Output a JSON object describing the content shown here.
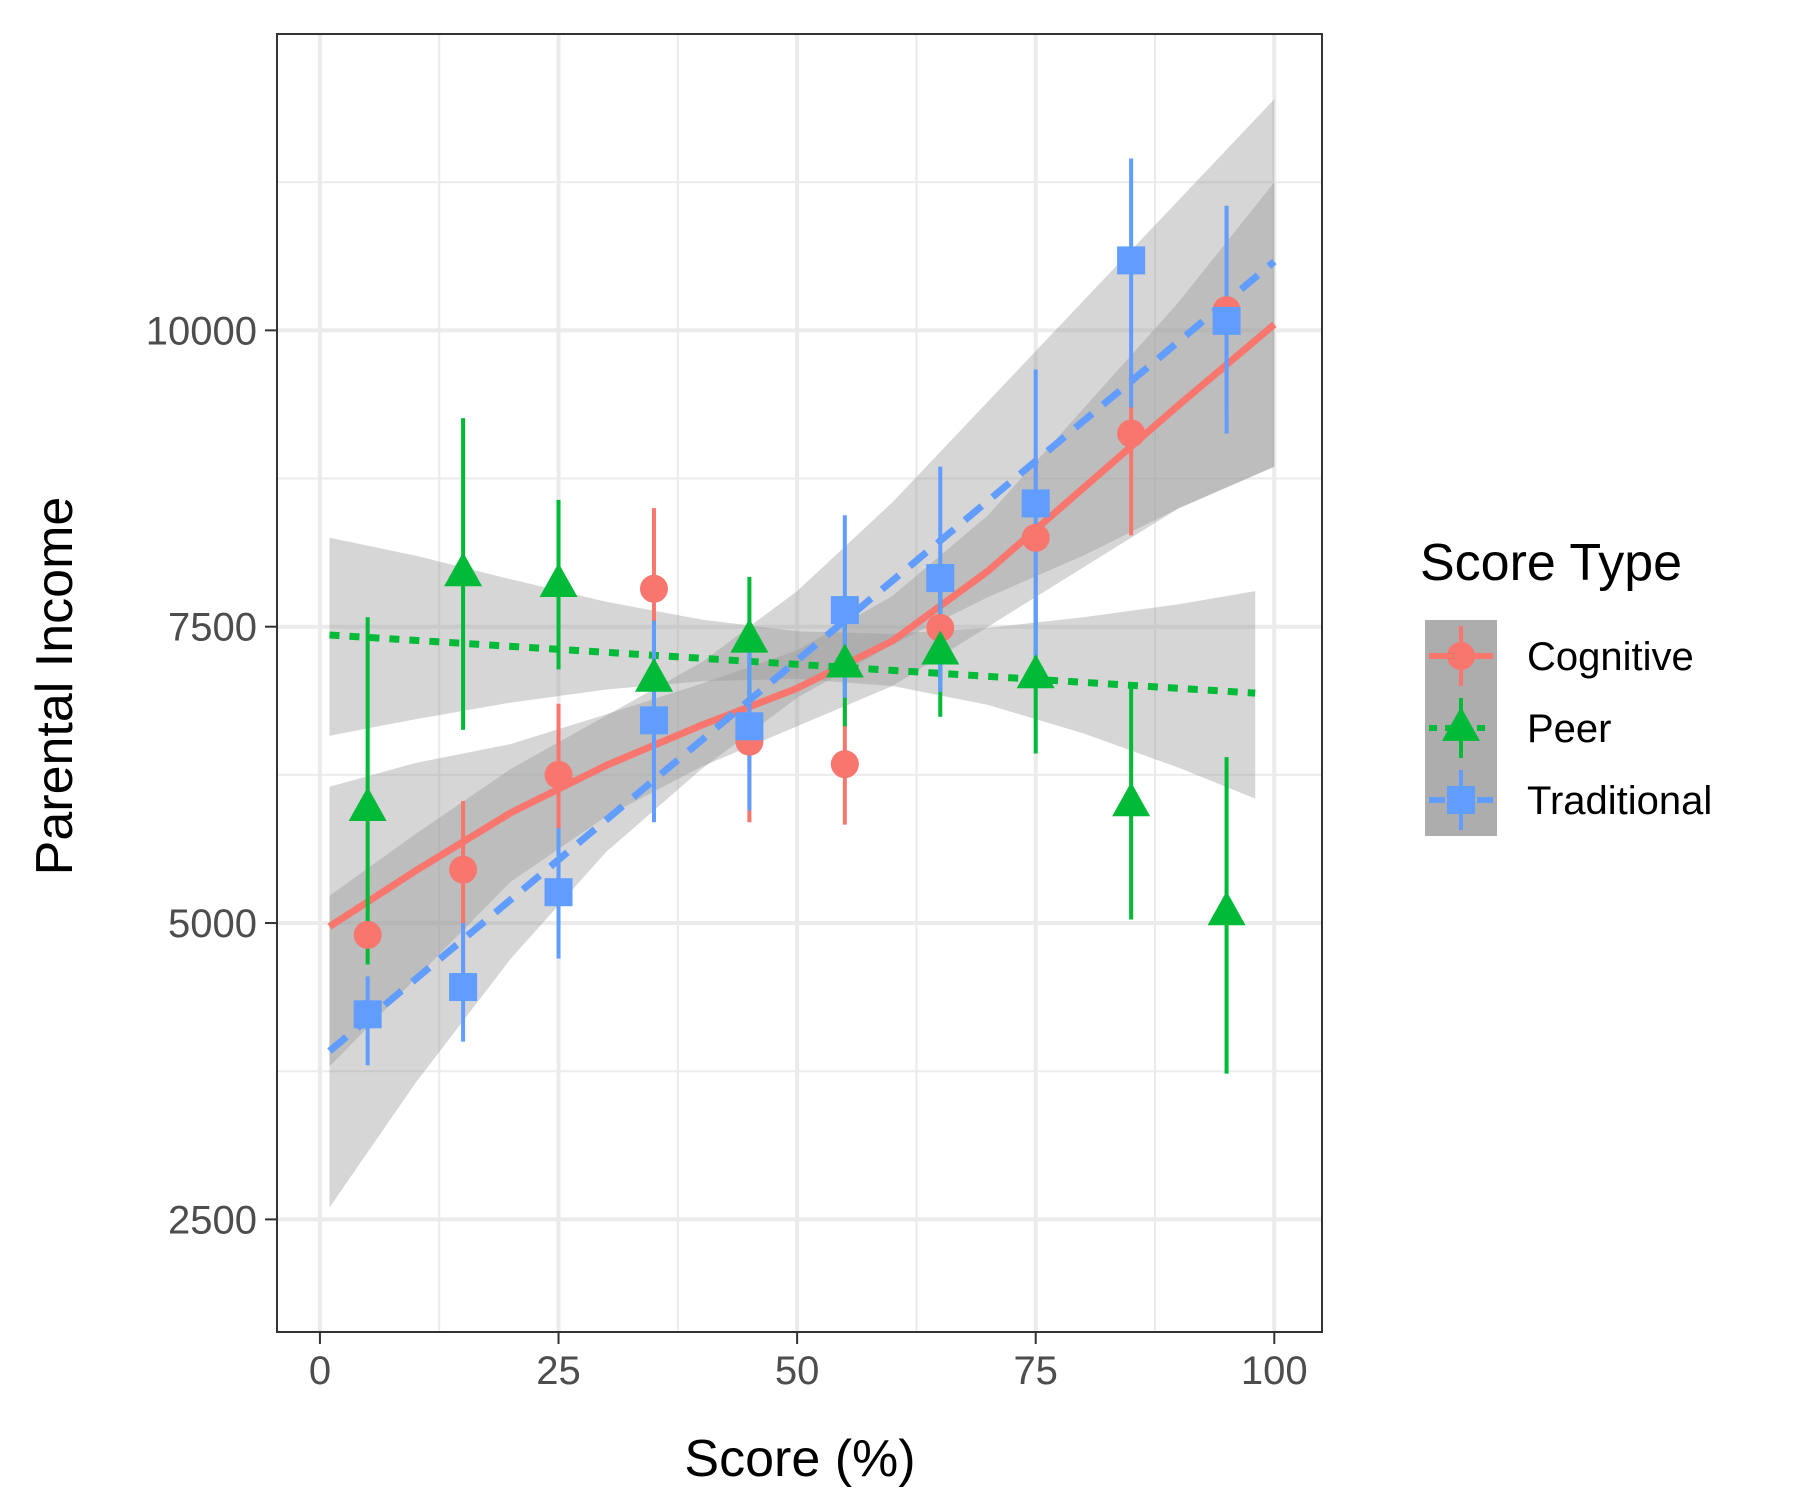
{
  "chart_data": {
    "type": "scatter",
    "title": "",
    "xlabel": "Score (%)",
    "ylabel": "Parental Income",
    "xlim": [
      -4.5,
      105
    ],
    "ylim": [
      1550,
      12500
    ],
    "x_ticks": [
      0,
      25,
      50,
      75,
      100
    ],
    "x_tick_labels": [
      "0",
      "25",
      "50",
      "75",
      "100"
    ],
    "y_ticks": [
      2500,
      5000,
      7500,
      10000
    ],
    "y_tick_labels": [
      "2500",
      "5000",
      "7500",
      "10000"
    ],
    "x_minor": [
      12.5,
      37.5,
      62.5,
      87.5
    ],
    "y_minor": [
      3750,
      6250,
      8750,
      11250
    ],
    "grid": true,
    "legend": {
      "title": "Score Type",
      "placement": "right",
      "entries": [
        {
          "label": "Cognitive",
          "color": "#F8766D",
          "shape": "circle",
          "line": "solid"
        },
        {
          "label": "Peer",
          "color": "#00BA38",
          "shape": "triangle",
          "line": "dotted"
        },
        {
          "label": "Traditional",
          "color": "#619CFF",
          "shape": "square",
          "line": "dashed"
        }
      ]
    },
    "series": [
      {
        "name": "Cognitive",
        "color": "#F8766D",
        "shape": "circle",
        "x": [
          5,
          15,
          25,
          35,
          45,
          55,
          65,
          75,
          85,
          95
        ],
        "y": [
          4900,
          5450,
          6250,
          7820,
          6530,
          6340,
          7490,
          8250,
          9130,
          10170
        ],
        "error_low": [
          null,
          4500,
          5650,
          7150,
          5850,
          5830,
          7050,
          7550,
          8270,
          9300
        ],
        "error_high": [
          null,
          6030,
          6850,
          8500,
          7200,
          6850,
          7900,
          8950,
          9700,
          11050
        ],
        "fit": {
          "style": "solid",
          "x": [
            1,
            10,
            20,
            30,
            40,
            50,
            60,
            70,
            80,
            90,
            100
          ],
          "y": [
            4970,
            5440,
            5930,
            6330,
            6670,
            6980,
            7380,
            7970,
            8670,
            9370,
            10050
          ],
          "band_low": [
            3790,
            4530,
            5350,
            5900,
            6320,
            6660,
            7000,
            7500,
            8000,
            8500,
            8850
          ],
          "band_high": [
            6150,
            6350,
            6510,
            6760,
            7020,
            7300,
            7760,
            8440,
            9340,
            10240,
            11250
          ]
        }
      },
      {
        "name": "Peer",
        "color": "#00BA38",
        "shape": "triangle",
        "x": [
          5,
          15,
          25,
          35,
          45,
          55,
          65,
          75,
          85,
          95
        ],
        "y": [
          5970,
          7950,
          7860,
          7060,
          7390,
          7180,
          7290,
          7090,
          6010,
          5090
        ],
        "error_low": [
          4650,
          6630,
          7140,
          6810,
          6870,
          6660,
          6740,
          6430,
          5030,
          3730
        ],
        "error_high": [
          7580,
          9260,
          8570,
          7340,
          7920,
          7720,
          7870,
          7750,
          6990,
          6400
        ],
        "fit": {
          "style": "dotted",
          "x": [
            1,
            98
          ],
          "y": [
            7430,
            6940
          ],
          "band_low": [
            6580,
            6050
          ],
          "band_high": [
            8250,
            7800
          ],
          "band_x": [
            1,
            10,
            20,
            30,
            40,
            50,
            60,
            70,
            80,
            90,
            98
          ],
          "band_low_curve": [
            6580,
            6720,
            6860,
            6970,
            7040,
            7060,
            7000,
            6840,
            6600,
            6310,
            6050
          ],
          "band_high_curve": [
            8250,
            8100,
            7900,
            7710,
            7560,
            7460,
            7440,
            7490,
            7580,
            7690,
            7800
          ]
        }
      },
      {
        "name": "Traditional",
        "color": "#619CFF",
        "shape": "square",
        "x": [
          5,
          15,
          25,
          35,
          45,
          55,
          65,
          75,
          85,
          95
        ],
        "y": [
          4230,
          4460,
          5260,
          6710,
          6660,
          7640,
          7910,
          8540,
          10590,
          10080
        ],
        "error_low": [
          3800,
          4000,
          4700,
          5850,
          5950,
          6900,
          6950,
          7250,
          9350,
          9130
        ],
        "error_high": [
          4550,
          5000,
          5800,
          7550,
          7350,
          8440,
          8850,
          9670,
          11450,
          11050
        ],
        "fit": {
          "style": "dashed",
          "x": [
            1,
            100
          ],
          "y": [
            3920,
            10580
          ],
          "band_x": [
            1,
            10,
            20,
            30,
            40,
            50,
            60,
            70,
            80,
            90,
            100
          ],
          "band_low_curve": [
            2600,
            3650,
            4700,
            5600,
            6300,
            6900,
            7350,
            7750,
            8100,
            8500,
            8850
          ],
          "band_high_curve": [
            5230,
            5750,
            6300,
            6750,
            7200,
            7800,
            8550,
            9400,
            10250,
            11100,
            11950
          ]
        }
      }
    ]
  }
}
